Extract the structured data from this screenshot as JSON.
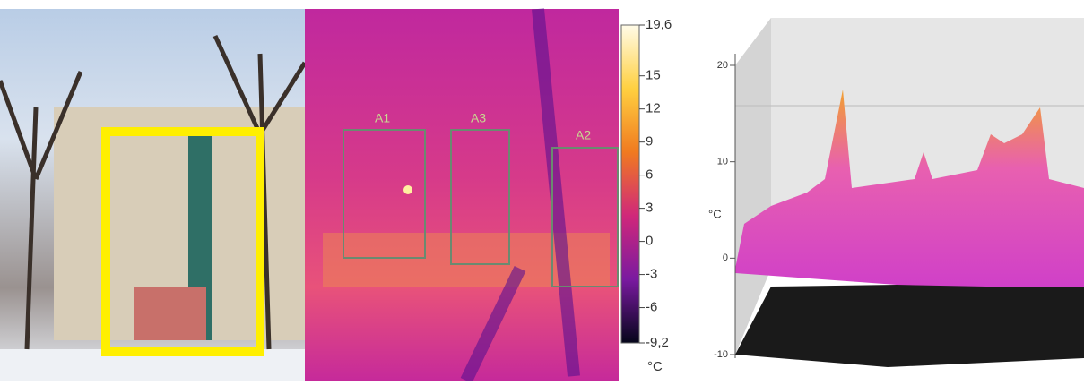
{
  "panels": {
    "thermal": {
      "regions": [
        "A1",
        "A3",
        "A2"
      ],
      "colorbar": {
        "ticks": [
          {
            "value": 19.6,
            "label": "19,6"
          },
          15,
          12,
          9,
          6,
          3,
          0,
          -3,
          -6,
          {
            "value": -9.2,
            "label": "-9,2"
          }
        ],
        "unit": "°C"
      }
    },
    "surface_plot": {
      "axis_ticks": [
        20,
        10,
        0,
        -10
      ],
      "axis_label": "°C"
    }
  }
}
